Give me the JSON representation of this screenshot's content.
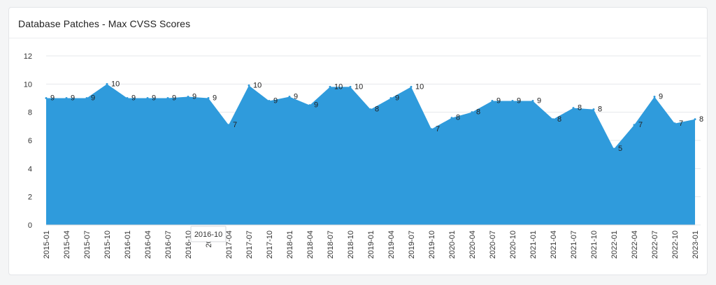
{
  "panel": {
    "title": "Database Patches - Max CVSS Scores"
  },
  "tooltip": {
    "text": "2016-10"
  },
  "chart_data": {
    "type": "area",
    "title": "Database Patches - Max CVSS Scores",
    "xlabel": "",
    "ylabel": "",
    "ylim": [
      0,
      12
    ],
    "yticks": [
      0,
      2,
      4,
      6,
      8,
      10,
      12
    ],
    "grid": true,
    "legend": "none",
    "color": "#2f9bdc",
    "x": [
      "2015-01",
      "2015-04",
      "2015-07",
      "2015-10",
      "2016-01",
      "2016-04",
      "2016-07",
      "2016-10",
      "2017",
      "2017-04",
      "2017-07",
      "2017-10",
      "2018-01",
      "2018-04",
      "2018-07",
      "2018-10",
      "2019-01",
      "2019-04",
      "2019-07",
      "2019-10",
      "2020-01",
      "2020-04",
      "2020-07",
      "2020-10",
      "2021-01",
      "2021-04",
      "2021-07",
      "2021-10",
      "2022-01",
      "2022-04",
      "2022-07",
      "2022-10",
      "2023-01"
    ],
    "values": [
      9.0,
      9.0,
      9.0,
      10.0,
      9.0,
      9.0,
      9.0,
      9.1,
      9.0,
      7.1,
      9.9,
      8.8,
      9.1,
      8.5,
      9.8,
      9.8,
      8.2,
      9.0,
      9.8,
      6.8,
      7.6,
      8.0,
      8.8,
      8.8,
      8.8,
      7.5,
      8.3,
      8.2,
      5.4,
      7.1,
      9.1,
      7.2,
      7.5
    ],
    "data_labels": [
      "9",
      "9",
      "9",
      "10",
      "9",
      "9",
      "9",
      "9",
      "9",
      "7",
      "10",
      "9",
      "9",
      "9",
      "10",
      "10",
      "8",
      "9",
      "10",
      "7",
      "8",
      "8",
      "9",
      "9",
      "9",
      "8",
      "8",
      "8",
      "5",
      "7",
      "9",
      "7",
      "8"
    ]
  }
}
